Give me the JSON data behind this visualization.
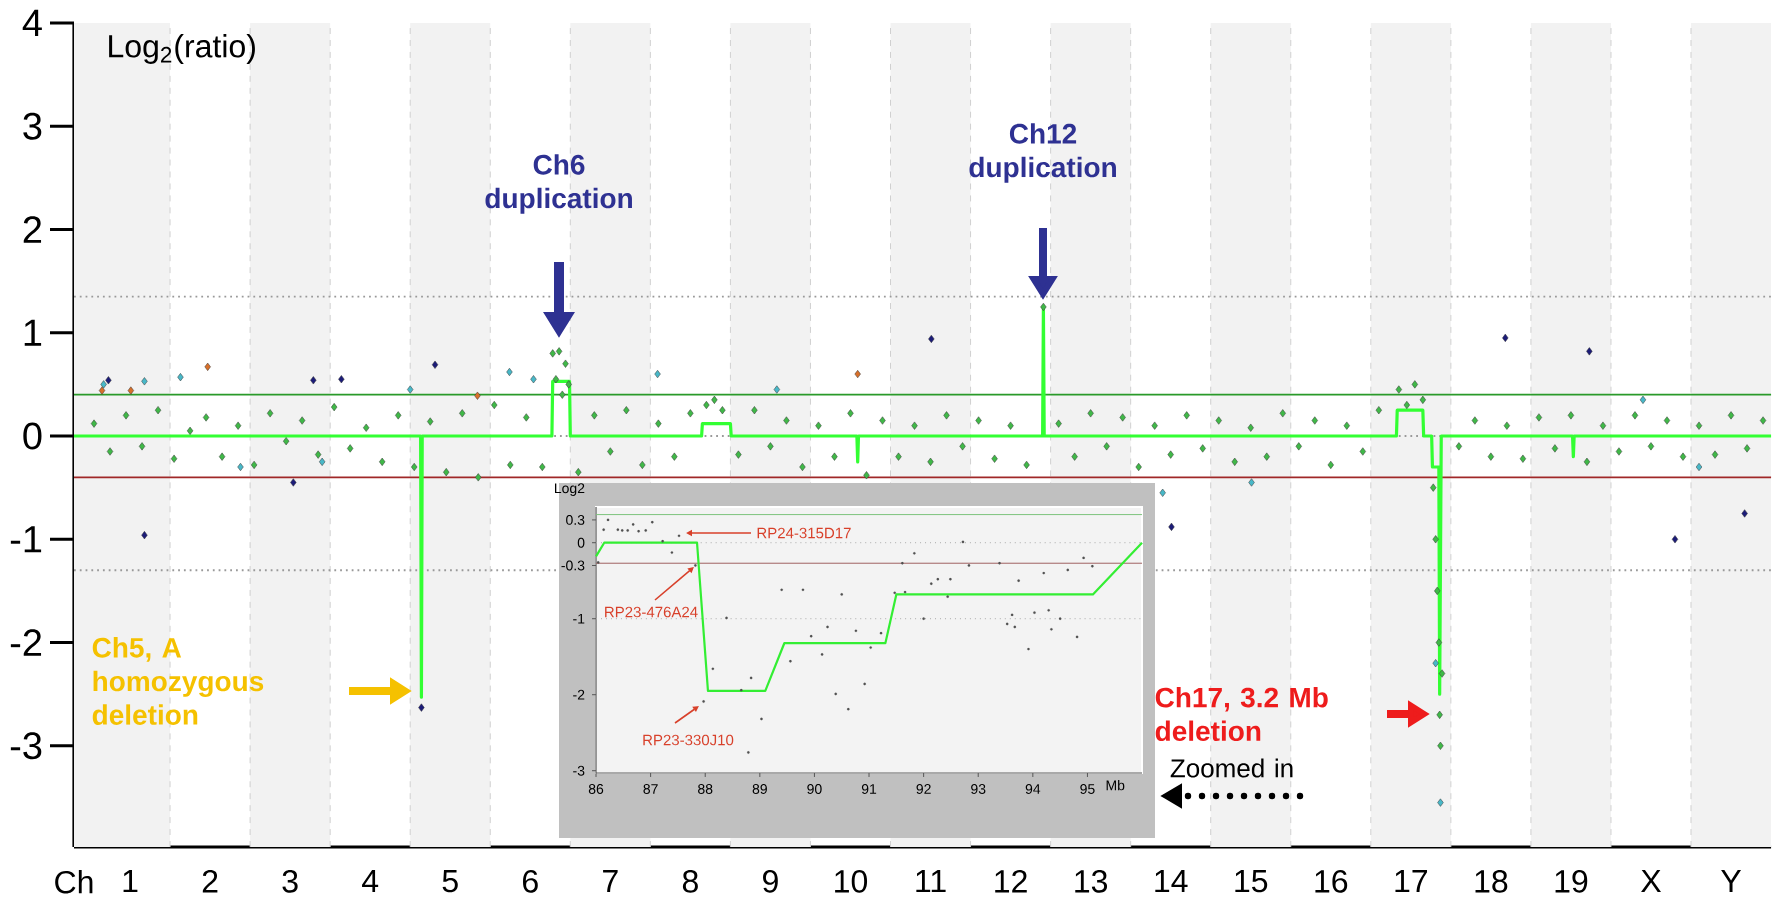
{
  "chart_data": [
    {
      "type": "scatter",
      "ylabel": "Log$_{2}$(ratio)",
      "xlabel": "Ch",
      "xlim": [
        0.3,
        21.5
      ],
      "ylim": [
        -3.98,
        4
      ],
      "xticks": [
        1,
        2,
        3,
        4,
        5,
        6,
        7,
        8,
        9,
        10,
        11,
        12,
        13,
        14,
        15,
        16,
        17,
        18,
        19,
        {
          "value": 20,
          "label": "X"
        },
        {
          "value": 21,
          "label": "Y"
        }
      ],
      "yticks": [
        -3,
        -2,
        -1,
        0,
        1,
        2,
        3,
        4
      ],
      "bands": [
        {
          "axis": "x",
          "from": 0.3,
          "to": 1.5,
          "color": "#f2f2f2"
        },
        {
          "axis": "x",
          "from": 2.5,
          "to": 3.5,
          "color": "#f2f2f2"
        },
        {
          "axis": "x",
          "from": 4.5,
          "to": 5.5,
          "color": "#f2f2f2"
        },
        {
          "axis": "x",
          "from": 6.5,
          "to": 7.5,
          "color": "#f2f2f2"
        },
        {
          "axis": "x",
          "from": 8.5,
          "to": 9.5,
          "color": "#f2f2f2"
        },
        {
          "axis": "x",
          "from": 10.5,
          "to": 11.5,
          "color": "#f2f2f2"
        },
        {
          "axis": "x",
          "from": 12.5,
          "to": 13.5,
          "color": "#f2f2f2"
        },
        {
          "axis": "x",
          "from": 14.5,
          "to": 15.5,
          "color": "#f2f2f2"
        },
        {
          "axis": "x",
          "from": 16.5,
          "to": 17.5,
          "color": "#f2f2f2"
        },
        {
          "axis": "x",
          "from": 18.5,
          "to": 19.5,
          "color": "#f2f2f2"
        },
        {
          "axis": "x",
          "from": 20.5,
          "to": 21.5,
          "color": "#f2f2f2"
        }
      ],
      "ref_lines": [
        {
          "axis": "y",
          "value": 1.35,
          "color": "#999999",
          "line_style": "dotted"
        },
        {
          "axis": "y",
          "value": -1.3,
          "color": "#999999",
          "line_style": "dotted"
        },
        {
          "axis": "y",
          "value": 0,
          "color": "#999999",
          "line_style": "dotted"
        },
        {
          "axis": "y",
          "value": 0.4,
          "color": "#2a9a2a",
          "line_style": "solid"
        },
        {
          "axis": "y",
          "value": -0.4,
          "color": "#a02828",
          "line_style": "solid"
        }
      ],
      "series": [
        {
          "color": "#40b848",
          "marker": "diamond",
          "x": [
            0.55,
            0.75,
            0.95,
            1.15,
            1.35,
            1.55,
            1.75,
            1.95,
            2.15,
            2.35,
            2.55,
            2.75,
            2.95,
            3.15,
            3.35,
            3.55,
            3.75,
            3.95,
            4.15,
            4.35,
            4.55,
            4.75,
            4.95,
            5.15,
            5.35,
            5.55,
            5.75,
            5.95,
            6.15,
            6.28,
            6.32,
            6.36,
            6.4,
            6.44,
            6.48,
            6.6,
            6.8,
            7.0,
            7.2,
            7.4,
            7.6,
            7.8,
            8.0,
            8.2,
            8.3,
            8.4,
            8.6,
            8.8,
            9.0,
            9.2,
            9.4,
            9.6,
            9.8,
            10.0,
            10.2,
            10.4,
            10.6,
            10.8,
            11.0,
            11.2,
            11.4,
            11.6,
            11.8,
            12.0,
            12.2,
            12.41,
            12.6,
            12.8,
            13.0,
            13.2,
            13.4,
            13.6,
            13.8,
            14.0,
            14.2,
            14.4,
            14.6,
            14.8,
            15.0,
            15.2,
            15.4,
            15.6,
            15.8,
            16.0,
            16.2,
            16.4,
            16.6,
            16.85,
            16.95,
            17.05,
            17.15,
            17.28,
            17.31,
            17.33,
            17.35,
            17.36,
            17.37,
            17.39,
            17.6,
            17.8,
            18.0,
            18.2,
            18.4,
            18.6,
            18.8,
            19.0,
            19.2,
            19.4,
            19.6,
            19.8,
            20.0,
            20.2,
            20.4,
            20.6,
            20.8,
            21.0,
            21.2,
            21.4
          ],
          "values": [
            0.12,
            -0.15,
            0.2,
            -0.1,
            0.25,
            -0.22,
            0.05,
            0.18,
            -0.2,
            0.1,
            -0.28,
            0.22,
            -0.05,
            0.15,
            -0.18,
            0.28,
            -0.12,
            0.08,
            -0.25,
            0.2,
            -0.3,
            0.14,
            -0.35,
            0.22,
            -0.4,
            0.3,
            -0.28,
            0.18,
            -0.3,
            0.8,
            0.55,
            0.82,
            0.4,
            0.7,
            0.5,
            -0.35,
            0.2,
            -0.15,
            0.25,
            -0.28,
            0.12,
            -0.2,
            0.22,
            0.3,
            0.35,
            0.25,
            -0.18,
            0.25,
            -0.1,
            0.15,
            -0.3,
            0.1,
            -0.2,
            0.22,
            -0.38,
            0.15,
            -0.2,
            0.1,
            -0.25,
            0.2,
            -0.1,
            0.15,
            -0.22,
            0.1,
            -0.28,
            1.25,
            0.12,
            -0.2,
            0.22,
            -0.1,
            0.18,
            -0.3,
            0.1,
            -0.18,
            0.2,
            -0.12,
            0.15,
            -0.25,
            0.08,
            -0.2,
            0.22,
            -0.1,
            0.15,
            -0.28,
            0.1,
            -0.15,
            0.25,
            0.45,
            0.3,
            0.5,
            0.35,
            -0.5,
            -1.0,
            -1.5,
            -2.0,
            -2.7,
            -3.0,
            -2.3,
            -0.1,
            0.15,
            -0.2,
            0.1,
            -0.22,
            0.18,
            -0.12,
            0.2,
            -0.25,
            0.1,
            -0.15,
            0.2,
            -0.1,
            0.15,
            -0.2,
            0.1,
            -0.18,
            0.2,
            -0.12,
            0.15
          ]
        },
        {
          "color": "#48b8c8",
          "marker": "diamond",
          "x": [
            0.67,
            1.18,
            1.63,
            2.38,
            3.4,
            4.5,
            5.74,
            6.04,
            7.59,
            9.08,
            13.9,
            15.01,
            17.31,
            17.37,
            19.9,
            20.6
          ],
          "values": [
            0.5,
            0.53,
            0.57,
            -0.3,
            -0.25,
            0.45,
            0.62,
            0.55,
            0.6,
            0.45,
            -0.55,
            -0.45,
            -2.2,
            -3.55,
            0.35,
            -0.3
          ]
        },
        {
          "color": "#1c1c78",
          "marker": "diamond",
          "x": [
            0.73,
            1.18,
            3.04,
            3.29,
            3.64,
            4.64,
            4.81,
            11.01,
            14.01,
            18.18,
            19.23,
            20.3,
            21.17
          ],
          "values": [
            0.54,
            -0.96,
            -0.45,
            0.54,
            0.55,
            -2.63,
            0.69,
            0.94,
            -0.88,
            0.95,
            0.82,
            -1.0,
            -0.75
          ]
        },
        {
          "color": "#d8702a",
          "marker": "diamond",
          "x": [
            0.65,
            1.01,
            1.97,
            5.34,
            10.09
          ],
          "values": [
            0.44,
            0.44,
            0.67,
            0.39,
            0.6
          ]
        },
        {
          "type": "line",
          "color": "#33ff33",
          "line_style": "solid",
          "x": [
            0.3,
            4.63,
            4.64,
            4.65,
            6.27,
            6.28,
            6.49,
            6.5,
            8.14,
            8.15,
            8.5,
            8.51,
            10.08,
            10.09,
            10.1,
            12.4,
            12.41,
            12.42,
            16.82,
            16.83,
            17.15,
            17.16,
            17.26,
            17.27,
            17.35,
            17.36,
            17.38,
            19.02,
            19.03,
            19.04,
            21.5
          ],
          "values": [
            0,
            0,
            -2.53,
            0,
            0,
            0.53,
            0.53,
            0,
            0,
            0.12,
            0.12,
            0,
            0,
            -0.25,
            0,
            0,
            1.25,
            0,
            0,
            0.25,
            0.25,
            0,
            0,
            -0.3,
            -0.3,
            -2.5,
            0,
            0,
            -0.2,
            0,
            0
          ]
        }
      ],
      "annotations": [
        "Ch6 duplication",
        "Ch12 duplication",
        "Ch5, A homozygous deletion",
        "Ch17, 3.2 Mb deletion",
        "Zoomed in"
      ]
    },
    {
      "type": "scatter",
      "ylabel": "Log2",
      "xlabel": "Mb",
      "xlim": [
        86,
        96
      ],
      "ylim": [
        -3.03,
        0.47
      ],
      "xticks": [
        86,
        87,
        88,
        89,
        90,
        91,
        92,
        93,
        94,
        95
      ],
      "yticks": [
        0.3,
        0,
        -0.3,
        -1,
        -2,
        -3
      ],
      "ref_lines": [
        {
          "axis": "y",
          "value": 0.37,
          "color": "#7cc47c",
          "line_style": "solid"
        },
        {
          "axis": "y",
          "value": 0,
          "color": "#aaaaaa",
          "line_style": "dotted"
        },
        {
          "axis": "y",
          "value": -0.27,
          "color": "#a06060",
          "line_style": "solid"
        },
        {
          "axis": "y",
          "value": -1,
          "color": "#aaaaaa",
          "line_style": "dotted"
        }
      ],
      "series": [
        {
          "color": "#505050",
          "marker": "circle",
          "x": [
            86.04,
            86.14,
            86.22,
            86.4,
            86.48,
            86.58,
            86.68,
            86.78,
            86.91,
            87.03,
            87.22,
            87.39,
            87.52,
            87.82,
            87.97,
            88.14,
            88.39,
            88.66,
            88.79,
            88.84,
            89.03,
            89.4,
            89.56,
            89.79,
            89.94,
            90.14,
            90.24,
            90.39,
            90.5,
            90.62,
            90.76,
            90.92,
            91.03,
            91.22,
            91.47,
            91.61,
            91.66,
            91.83,
            92.0,
            92.14,
            92.26,
            92.44,
            92.49,
            92.72,
            92.83,
            93.39,
            93.53,
            93.62,
            93.67,
            93.74,
            93.92,
            94.03,
            94.2,
            94.29,
            94.34,
            94.5,
            94.64,
            94.81,
            94.93,
            95.09
          ],
          "values": [
            -0.26,
            0.17,
            0.3,
            0.17,
            0.16,
            0.16,
            0.24,
            0.15,
            0.16,
            0.27,
            0.02,
            -0.13,
            0.09,
            -0.3,
            -2.09,
            -1.66,
            -0.99,
            -1.94,
            -2.76,
            -1.78,
            -2.32,
            -0.62,
            -1.56,
            -0.62,
            -1.23,
            -1.47,
            -1.11,
            -1.99,
            -0.68,
            -2.19,
            -1.16,
            -1.86,
            -1.38,
            -1.19,
            -0.66,
            -0.27,
            -0.65,
            -0.14,
            -1.0,
            -0.54,
            -0.48,
            -0.71,
            -0.48,
            0.01,
            -0.3,
            -0.27,
            -1.07,
            -0.95,
            -1.11,
            -0.5,
            -1.4,
            -0.92,
            -0.4,
            -0.89,
            -1.14,
            -1.0,
            -0.36,
            -1.24,
            -0.2,
            -0.31
          ]
        },
        {
          "type": "line",
          "color": "#33ee33",
          "line_style": "solid",
          "x": [
            86.0,
            86.15,
            87.85,
            88.05,
            89.1,
            89.45,
            91.3,
            91.5,
            95.1,
            96.0
          ],
          "values": [
            -0.18,
            0,
            0,
            -1.95,
            -1.95,
            -1.32,
            -1.32,
            -0.68,
            -0.68,
            0
          ]
        }
      ],
      "annotations": [
        "RP24-315D17",
        "RP23-476A24",
        "RP23-330J10"
      ]
    }
  ]
}
